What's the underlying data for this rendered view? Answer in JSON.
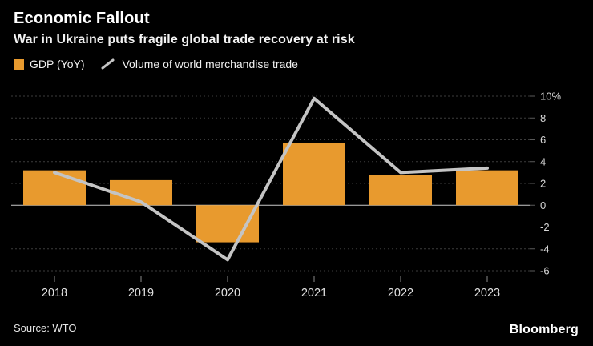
{
  "header": {
    "title": "Economic Fallout",
    "subtitle": "War in Ukraine puts fragile global trade recovery at risk"
  },
  "footer": {
    "source": "Source: WTO",
    "brand": "Bloomberg"
  },
  "chart_data": {
    "type": "bar+line",
    "categories": [
      "2018",
      "2019",
      "2020",
      "2021",
      "2022",
      "2023"
    ],
    "series": [
      {
        "name": "GDP (YoY)",
        "type": "bar",
        "color": "#E89A2E",
        "values": [
          3.2,
          2.3,
          -3.4,
          5.7,
          2.8,
          3.2
        ]
      },
      {
        "name": "Volume of world merchandise trade",
        "type": "line",
        "color": "#C4C4C4",
        "values": [
          3.0,
          0.3,
          -5.0,
          9.8,
          3.0,
          3.4
        ]
      }
    ],
    "y_ticks": [
      10,
      8,
      6,
      4,
      2,
      0,
      -2,
      -4,
      -6
    ],
    "y_tick_labels": [
      "10%",
      "8",
      "6",
      "4",
      "2",
      "0",
      "-2",
      "-4",
      "-6"
    ],
    "ylim": [
      -6,
      10
    ],
    "grid": "dashed horizontal",
    "axis_side": "right",
    "legend_position": "top-left"
  }
}
